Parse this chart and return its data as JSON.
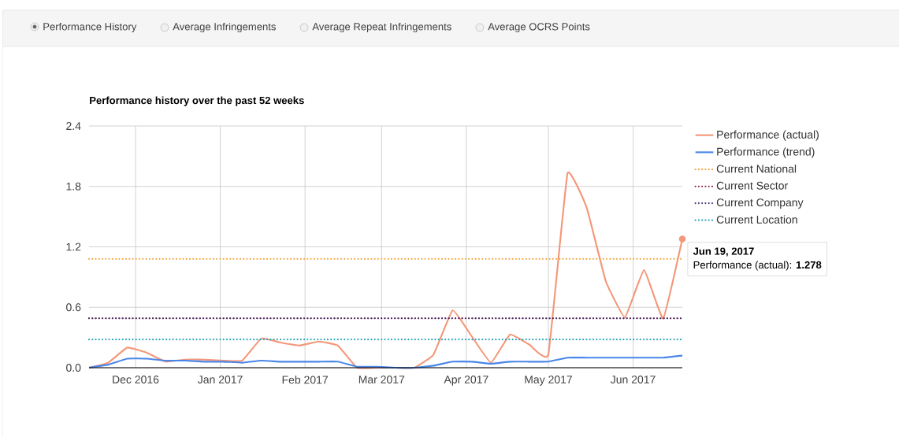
{
  "chart_data": {
    "type": "line",
    "title": "Performance history over the past 52 weeks",
    "x": [
      "2016-11-14",
      "2016-11-21",
      "2016-11-28",
      "2016-12-05",
      "2016-12-12",
      "2016-12-19",
      "2016-12-26",
      "2017-01-02",
      "2017-01-09",
      "2017-01-16",
      "2017-01-23",
      "2017-01-30",
      "2017-02-06",
      "2017-02-13",
      "2017-02-20",
      "2017-02-27",
      "2017-03-06",
      "2017-03-13",
      "2017-03-20",
      "2017-03-27",
      "2017-04-03",
      "2017-04-10",
      "2017-04-17",
      "2017-04-24",
      "2017-05-01",
      "2017-05-08",
      "2017-05-15",
      "2017-05-22",
      "2017-05-29",
      "2017-06-05",
      "2017-06-12",
      "2017-06-19"
    ],
    "series": [
      {
        "name": "Performance (actual)",
        "color": "#f4977a",
        "values": [
          0,
          0.05,
          0.2,
          0.15,
          0.06,
          0.08,
          0.08,
          0.07,
          0.07,
          0.29,
          0.25,
          0.22,
          0.26,
          0.22,
          0.0,
          0.0,
          0.0,
          0.0,
          0.13,
          0.57,
          0.31,
          0.05,
          0.33,
          0.23,
          0.13,
          1.93,
          1.59,
          0.86,
          0.5,
          0.97,
          0.49,
          1.278
        ]
      },
      {
        "name": "Performance (trend)",
        "color": "#4a86e8",
        "values": [
          0,
          0.03,
          0.09,
          0.09,
          0.07,
          0.07,
          0.06,
          0.06,
          0.05,
          0.07,
          0.06,
          0.06,
          0.06,
          0.06,
          0.01,
          0.01,
          0.0,
          0.0,
          0.02,
          0.06,
          0.06,
          0.04,
          0.06,
          0.06,
          0.06,
          0.1,
          0.1,
          0.1,
          0.1,
          0.1,
          0.1,
          0.12
        ]
      }
    ],
    "ref_lines": [
      {
        "axis": "y",
        "value": 1.08,
        "label": "Current National",
        "color": "#f4a43a",
        "line_style": "dotted"
      },
      {
        "axis": "y",
        "value": 0.49,
        "label": "Current Sector",
        "color": "#8b1a4a",
        "line_style": "dotted"
      },
      {
        "axis": "y",
        "value": 0.49,
        "label": "Current Company",
        "color": "#4a2f6b",
        "line_style": "dotted"
      },
      {
        "axis": "y",
        "value": 0.28,
        "label": "Current Location",
        "color": "#26a6b8",
        "line_style": "dotted"
      }
    ],
    "xlim": [
      "2016-11-14",
      "2017-06-19"
    ],
    "xticks": [
      {
        "value": "2016-12-01",
        "label": "Dec 2016"
      },
      {
        "value": "2017-01-01",
        "label": "Jan 2017"
      },
      {
        "value": "2017-02-01",
        "label": "Feb 2017"
      },
      {
        "value": "2017-03-01",
        "label": "Mar 2017"
      },
      {
        "value": "2017-04-01",
        "label": "Apr 2017"
      },
      {
        "value": "2017-05-01",
        "label": "May 2017"
      },
      {
        "value": "2017-06-01",
        "label": "Jun 2017"
      }
    ],
    "ylim": [
      0,
      2.4
    ],
    "yticks": [
      {
        "value": 0,
        "label": "0.0"
      },
      {
        "value": 0.6,
        "label": "0.6"
      },
      {
        "value": 1.2,
        "label": "1.2"
      },
      {
        "value": 1.8,
        "label": "1.8"
      },
      {
        "value": 2.4,
        "label": "2.4"
      }
    ],
    "grid": true,
    "legend": "right",
    "line_style": "solid",
    "marker": "none",
    "annotations": [
      "Performance History",
      "Average Infringements",
      "Average Repeat Infringements",
      "Average OCRS Points",
      {
        "text": "Jun 19, 2017",
        "x": "2017-06-19",
        "y": 1.278
      },
      {
        "text": "Performance (actual): **1.278**",
        "x": "2017-06-19",
        "y": 1.278
      }
    ]
  }
}
